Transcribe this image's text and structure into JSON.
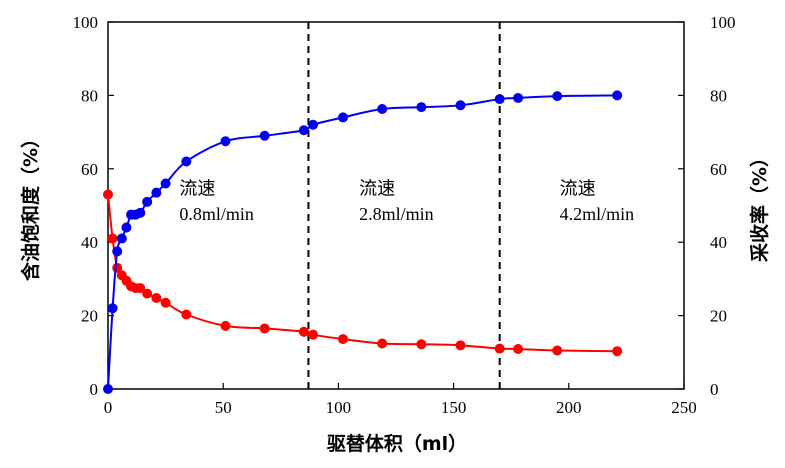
{
  "chart_data": {
    "type": "line",
    "xlabel": "驱替体积（ml）",
    "ylabel_left": "含油饱和度（%）",
    "ylabel_right": "采收率（%）",
    "xlim": [
      0,
      250
    ],
    "ylim": [
      0,
      100
    ],
    "x_ticks": [
      0,
      50,
      100,
      150,
      200,
      250
    ],
    "y_ticks": [
      0,
      20,
      40,
      60,
      80,
      100
    ],
    "grid": false,
    "legend": "none",
    "vlines": [
      87,
      170
    ],
    "annotations": [
      {
        "line1": "流速",
        "line2": "0.8ml/min",
        "x": 31,
        "y": 53,
        "y2": 46
      },
      {
        "line1": "流速",
        "line2": "2.8ml/min",
        "x": 109,
        "y": 53,
        "y2": 46
      },
      {
        "line1": "流速",
        "line2": "4.2ml/min",
        "x": 196,
        "y": 53,
        "y2": 46
      }
    ],
    "series": [
      {
        "axis": "left",
        "color": "#ff0000",
        "x": [
          0,
          2,
          4,
          6,
          8,
          10,
          12,
          14,
          17,
          21,
          25,
          34,
          51,
          68,
          85,
          89,
          102,
          119,
          136,
          153,
          170,
          178,
          195,
          221
        ],
        "y": [
          53,
          41,
          33,
          31,
          29.5,
          28,
          27.5,
          27.5,
          26,
          24.8,
          23.5,
          20.3,
          17.2,
          16.5,
          15.6,
          14.8,
          13.6,
          12.4,
          12.2,
          11.9,
          11.0,
          10.9,
          10.5,
          10.3
        ]
      },
      {
        "axis": "right",
        "color": "#0000ee",
        "x": [
          0,
          2,
          4,
          6,
          8,
          10,
          12,
          14,
          17,
          21,
          25,
          34,
          51,
          68,
          85,
          89,
          102,
          119,
          136,
          153,
          170,
          178,
          195,
          221
        ],
        "y": [
          0,
          22,
          37.5,
          41,
          44,
          47.5,
          47.5,
          48,
          51,
          53.5,
          56,
          62,
          67.5,
          69,
          70.5,
          72,
          74,
          76.3,
          76.8,
          77.3,
          79,
          79.3,
          79.8,
          80
        ]
      }
    ]
  }
}
